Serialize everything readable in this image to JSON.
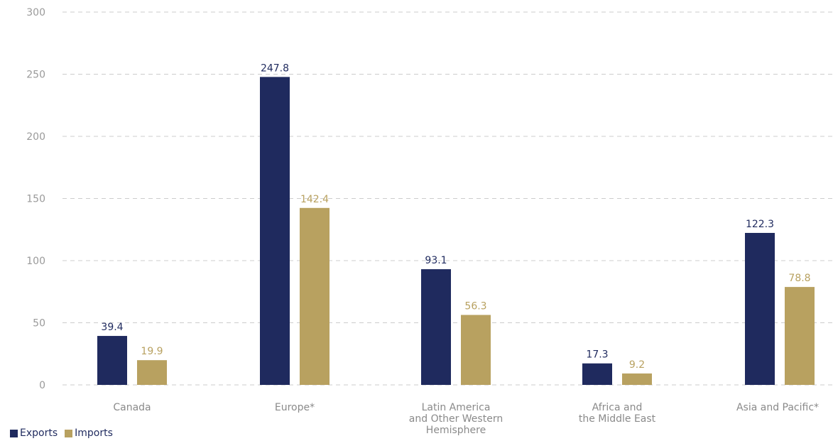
{
  "chart_data": {
    "type": "bar",
    "title": "",
    "xlabel": "",
    "ylabel": "",
    "ylim": [
      0,
      300
    ],
    "yticks": [
      0,
      50,
      100,
      150,
      200,
      250,
      300
    ],
    "grid": true,
    "legend_position": "bottom-left",
    "categories": [
      [
        "Canada"
      ],
      [
        "Europe*"
      ],
      [
        "Latin America",
        "and Other Western",
        "Hemisphere"
      ],
      [
        "Africa and",
        "the Middle East"
      ],
      [
        "Asia and Pacific*"
      ]
    ],
    "series": [
      {
        "name": "Exports",
        "color": "#1f2a5e",
        "values": [
          39.4,
          247.8,
          93.1,
          17.3,
          122.3
        ],
        "labels": [
          "39.4",
          "247.8",
          "93.1",
          "17.3",
          "122.3"
        ]
      },
      {
        "name": "Imports",
        "color": "#b8a160",
        "values": [
          19.9,
          142.4,
          56.3,
          9.2,
          78.8
        ],
        "labels": [
          "19.9",
          "142.4",
          "56.3",
          "9.2",
          "78.8"
        ]
      }
    ],
    "colors": {
      "grid": "#cccccc",
      "tick_text": "#9a9a9a",
      "category_text": "#8a8a8a"
    }
  }
}
